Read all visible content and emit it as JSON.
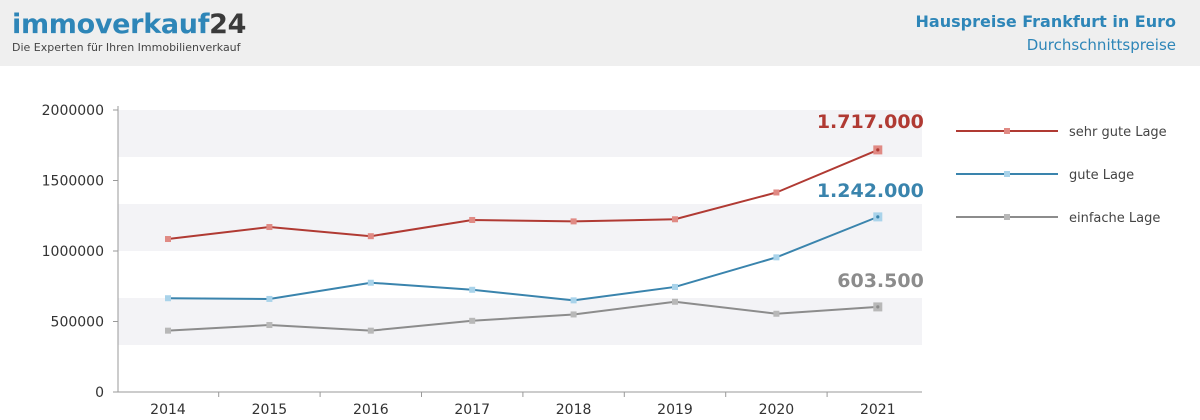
{
  "header": {
    "logo_main": "immoverkauf",
    "logo_num": "24",
    "tagline": "Die Experten für Ihren Immobilienverkauf",
    "title": "Hauspreise Frankfurt in Euro",
    "subtitle": "Durchschnittspreise"
  },
  "colors": {
    "accent": "#2e86b8",
    "band": "#f3f3f6"
  },
  "chart_data": {
    "type": "line",
    "title": "Hauspreise Frankfurt in Euro",
    "subtitle": "Durchschnittspreise",
    "x": [
      "2014",
      "2015",
      "2016",
      "2017",
      "2018",
      "2019",
      "2020",
      "2021"
    ],
    "ylim": [
      0,
      2000000
    ],
    "yticks": [
      "2000000",
      "1500000",
      "1000000",
      "500000",
      "0"
    ],
    "yticks_values": [
      2000000,
      1500000,
      1000000,
      500000,
      0
    ],
    "grid": "alternating horizontal bands",
    "legend_position": "right",
    "series": [
      {
        "name": "sehr gute Lage",
        "color": "#b03a33",
        "marker_color": "#e08a84",
        "values": [
          1085000,
          1170000,
          1105000,
          1220000,
          1210000,
          1225000,
          1415000,
          1717000
        ],
        "end_label": "1.717.000"
      },
      {
        "name": "gute Lage",
        "color": "#3a84ad",
        "marker_color": "#a9d3ea",
        "values": [
          665000,
          660000,
          775000,
          725000,
          650000,
          745000,
          955000,
          1242000
        ],
        "end_label": "1.242.000"
      },
      {
        "name": "einfache Lage",
        "color": "#8c8c8c",
        "marker_color": "#b8b8b8",
        "values": [
          435000,
          475000,
          435000,
          505000,
          550000,
          640000,
          555000,
          603500
        ],
        "end_label": "603.500"
      }
    ]
  }
}
